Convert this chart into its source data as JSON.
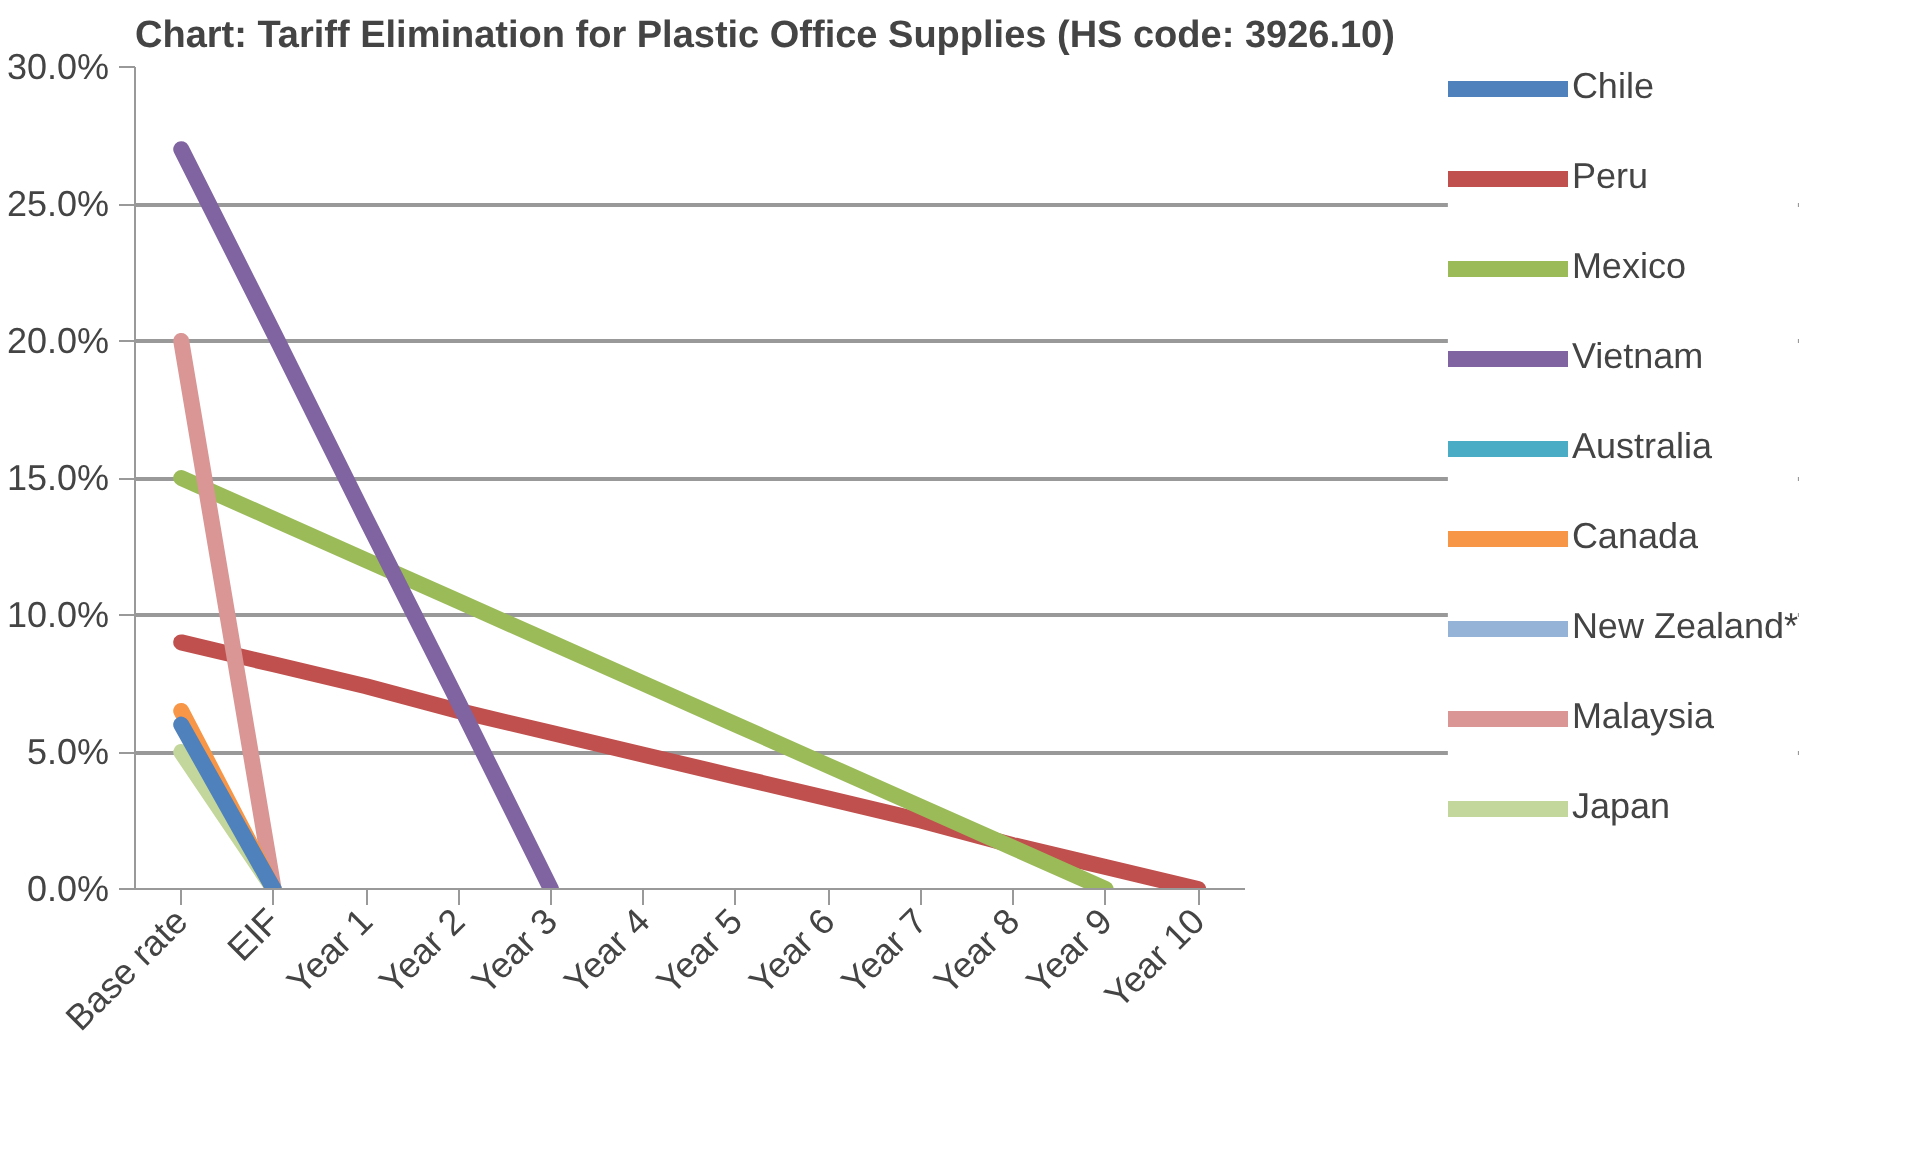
{
  "chart_data": {
    "type": "line",
    "title": "Chart: Tariff Elimination for Plastic Office Supplies (HS code: 3926.10)",
    "categories": [
      "Base rate",
      "EIF",
      "Year 1",
      "Year 2",
      "Year 3",
      "Year 4",
      "Year 5",
      "Year 6",
      "Year 7",
      "Year 8",
      "Year 9",
      "Year 10"
    ],
    "series": [
      {
        "name": "Chile",
        "color": "#4f81bd",
        "values": [
          6,
          0,
          null,
          null,
          null,
          null,
          null,
          null,
          null,
          null,
          null,
          null
        ]
      },
      {
        "name": "Peru",
        "color": "#c0504d",
        "values": [
          9,
          8.2,
          7.4,
          6.5,
          5.7,
          4.9,
          4.1,
          3.3,
          2.5,
          1.6,
          0.8,
          0
        ]
      },
      {
        "name": "Mexico",
        "color": "#9bbb59",
        "values": [
          15,
          13.5,
          12,
          10.5,
          9,
          7.5,
          6,
          4.5,
          3,
          1.5,
          0,
          null
        ]
      },
      {
        "name": "Vietnam",
        "color": "#8064a2",
        "values": [
          27,
          20.3,
          13.5,
          6.8,
          0,
          null,
          null,
          null,
          null,
          null,
          null,
          null
        ]
      },
      {
        "name": "Australia",
        "color": "#4bacc6",
        "values": [
          null,
          null,
          null,
          null,
          null,
          null,
          null,
          null,
          null,
          null,
          null,
          null
        ]
      },
      {
        "name": "Canada",
        "color": "#f79646",
        "values": [
          6.5,
          0,
          null,
          null,
          null,
          null,
          null,
          null,
          null,
          null,
          null,
          null
        ]
      },
      {
        "name": "New Zealand*",
        "color": "#95b3d7",
        "values": [
          null,
          null,
          null,
          null,
          null,
          null,
          null,
          null,
          null,
          null,
          null,
          null
        ]
      },
      {
        "name": "Malaysia",
        "color": "#d99694",
        "values": [
          20,
          0,
          null,
          null,
          null,
          null,
          null,
          null,
          null,
          null,
          null,
          null
        ]
      },
      {
        "name": "Japan",
        "color": "#c3d69b",
        "values": [
          5,
          0,
          null,
          null,
          null,
          null,
          null,
          null,
          null,
          null,
          null,
          null
        ]
      }
    ],
    "ylim": [
      0,
      30
    ],
    "yticks": [
      {
        "value": 0,
        "label": "0.0%"
      },
      {
        "value": 5,
        "label": "5.0%"
      },
      {
        "value": 10,
        "label": "10.0%"
      },
      {
        "value": 15,
        "label": "15.0%"
      },
      {
        "value": 20,
        "label": "20.0%"
      },
      {
        "value": 25,
        "label": "25.0%"
      },
      {
        "value": 30,
        "label": "30.0%"
      }
    ],
    "grid": "y",
    "legend": "right",
    "marker": "none",
    "line_style": "solid"
  }
}
